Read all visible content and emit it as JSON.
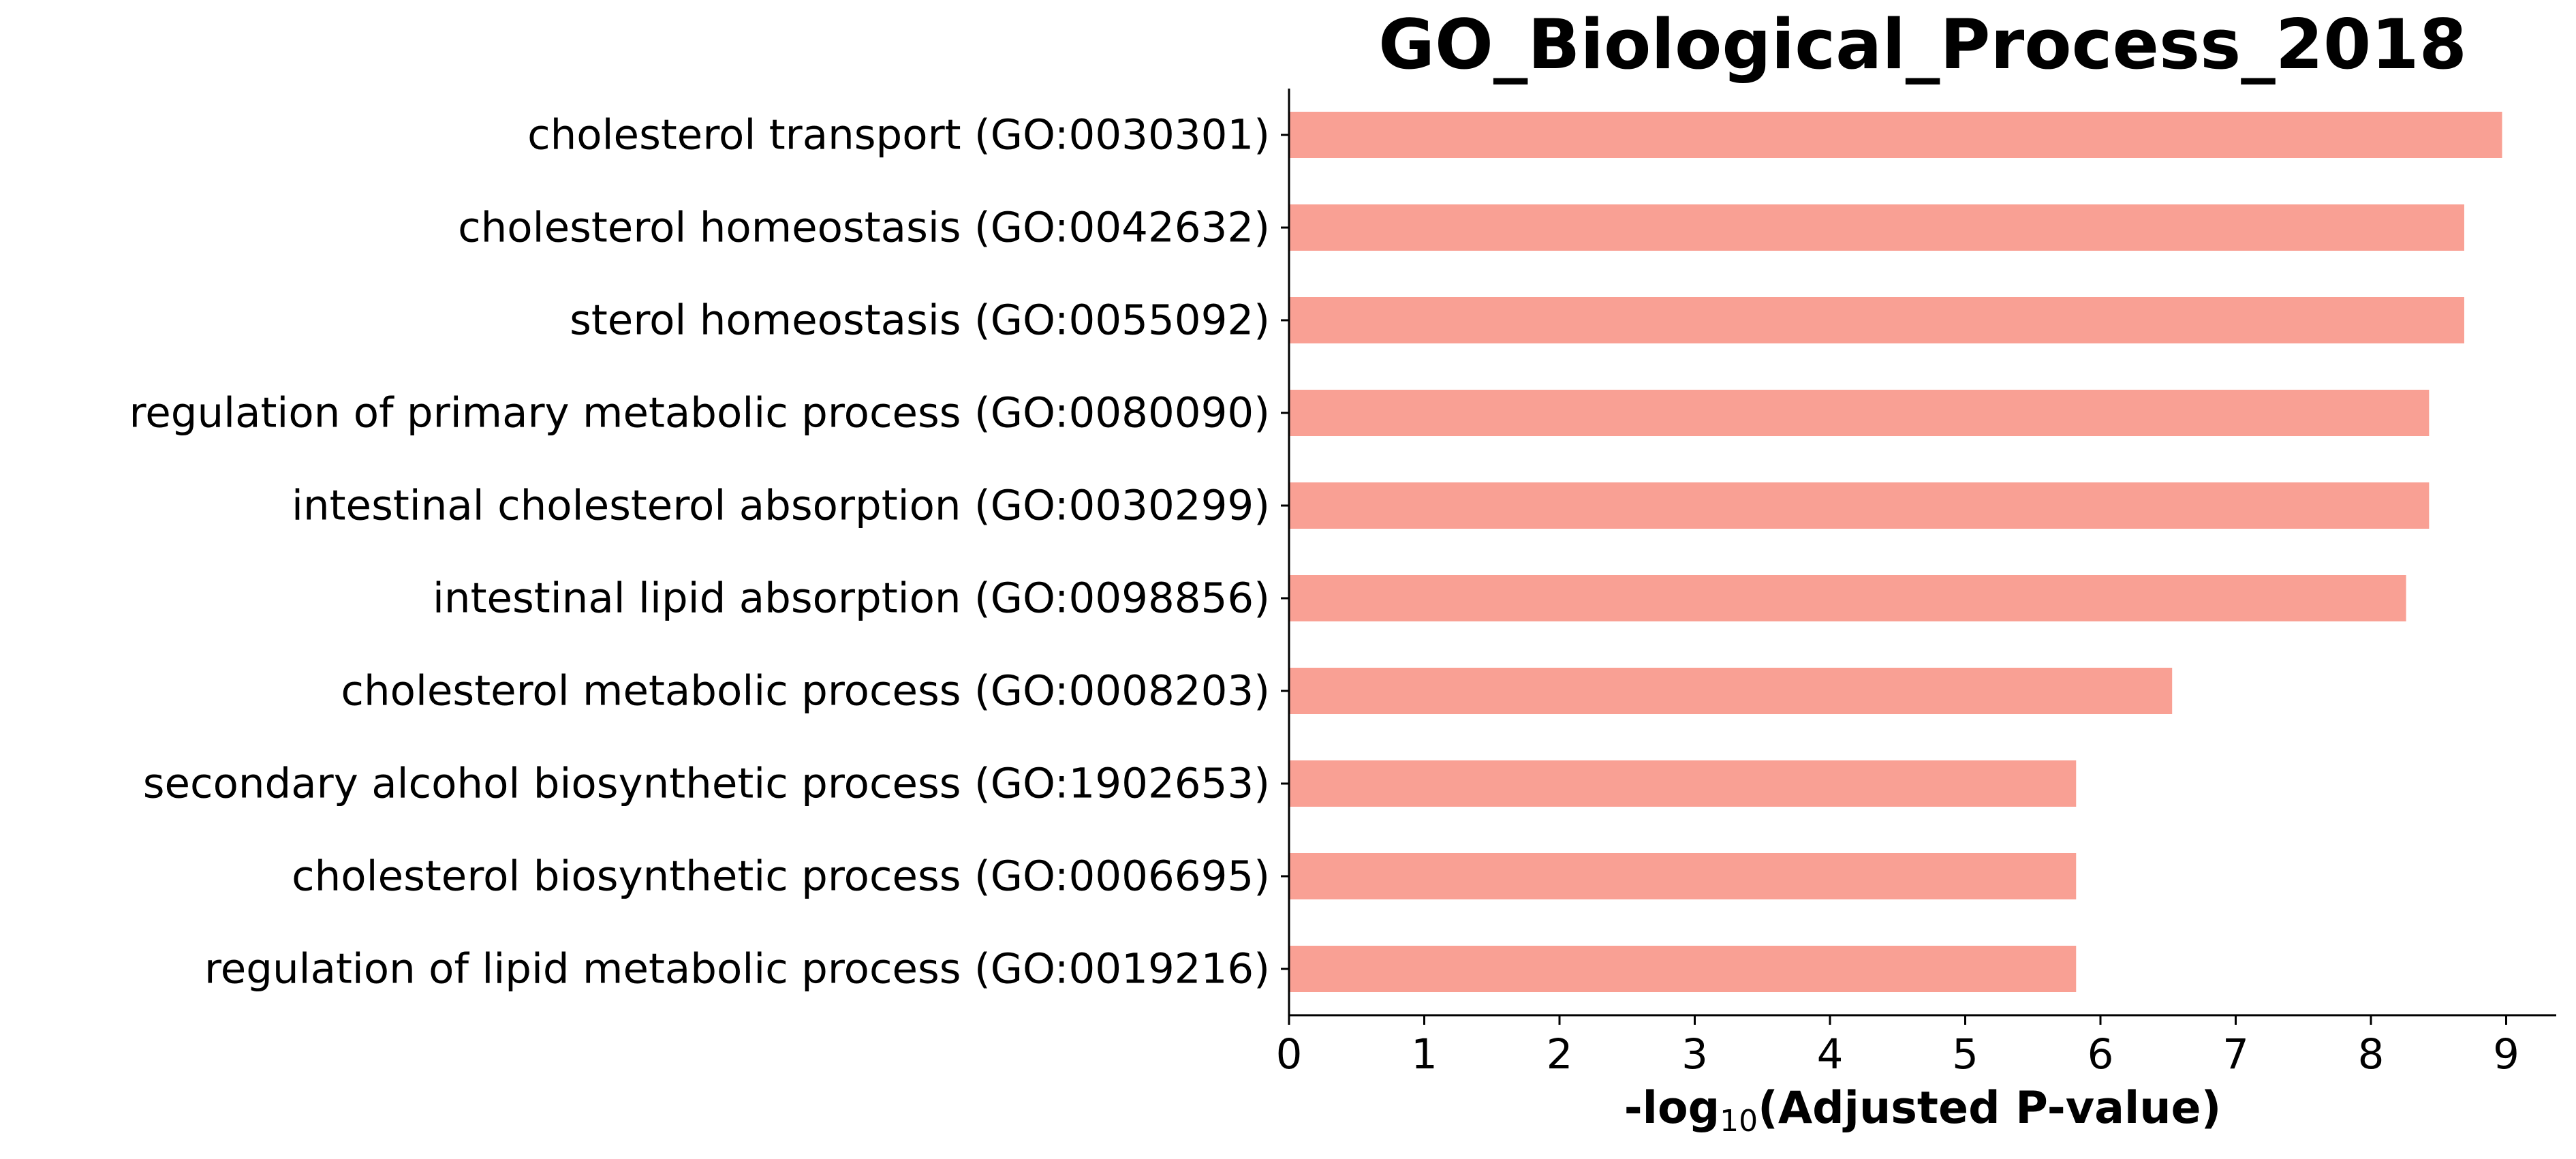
{
  "chart_data": {
    "type": "bar",
    "orientation": "horizontal",
    "title": "GO_Biological_Process_2018",
    "xlabel_prefix": "-log",
    "xlabel_subscript": "10",
    "xlabel_suffix": "(Adjusted P-value)",
    "ylabel": "",
    "xlim": [
      0,
      9.4
    ],
    "xticks": [
      0,
      1,
      2,
      3,
      4,
      5,
      6,
      7,
      8,
      9
    ],
    "grid": false,
    "bar_color": "#f9a094",
    "categories": [
      "cholesterol transport (GO:0030301)",
      "cholesterol homeostasis (GO:0042632)",
      "sterol homeostasis (GO:0055092)",
      "regulation of primary metabolic process (GO:0080090)",
      "intestinal cholesterol absorption (GO:0030299)",
      "intestinal lipid absorption (GO:0098856)",
      "cholesterol metabolic process (GO:0008203)",
      "secondary alcohol biosynthetic process (GO:1902653)",
      "cholesterol biosynthetic process (GO:0006695)",
      "regulation of lipid metabolic process (GO:0019216)"
    ],
    "values": [
      8.97,
      8.69,
      8.69,
      8.43,
      8.43,
      8.26,
      6.53,
      5.82,
      5.82,
      5.82
    ]
  }
}
